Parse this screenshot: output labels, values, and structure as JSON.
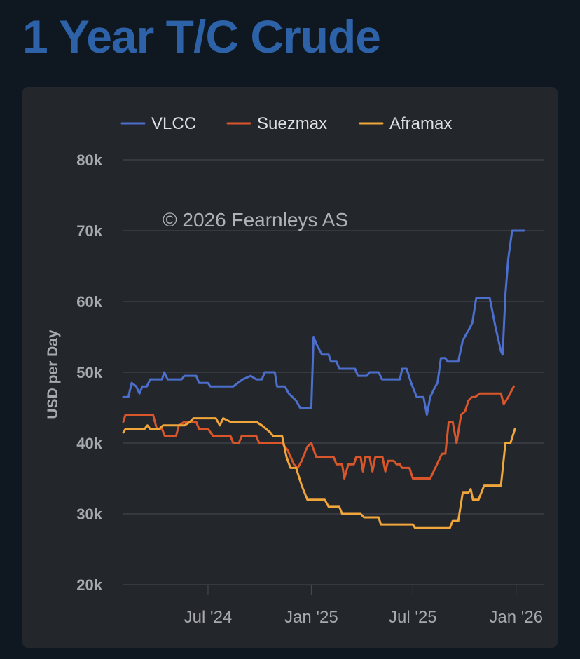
{
  "page": {
    "title": "1 Year T/C Crude"
  },
  "chart_data": {
    "type": "line",
    "ylabel": "USD per Day",
    "credit": "© 2026 Fearnleys AS",
    "ylim": [
      20000,
      80000
    ],
    "yticks": [
      20000,
      30000,
      40000,
      50000,
      60000,
      70000,
      80000
    ],
    "ytick_labels": [
      "20k",
      "30k",
      "40k",
      "50k",
      "60k",
      "70k",
      "80k"
    ],
    "xlim": [
      "2024-02-01",
      "2026-02-19"
    ],
    "xticks": [
      "2024-07-01",
      "2025-01-01",
      "2025-07-01",
      "2026-01-01"
    ],
    "xtick_labels": [
      "Jul '24",
      "Jan '25",
      "Jul '25",
      "Jan '26"
    ],
    "grid": true,
    "legend": "top",
    "series": [
      {
        "name": "VLCC",
        "color": "#4c6fce",
        "points": [
          [
            "2024-02-01",
            46500
          ],
          [
            "2024-02-10",
            46500
          ],
          [
            "2024-02-16",
            48500
          ],
          [
            "2024-02-24",
            48000
          ],
          [
            "2024-03-01",
            47000
          ],
          [
            "2024-03-06",
            48000
          ],
          [
            "2024-03-14",
            48000
          ],
          [
            "2024-03-20",
            49000
          ],
          [
            "2024-04-10",
            49000
          ],
          [
            "2024-04-14",
            50000
          ],
          [
            "2024-04-20",
            49000
          ],
          [
            "2024-05-15",
            49000
          ],
          [
            "2024-05-20",
            49500
          ],
          [
            "2024-06-10",
            49500
          ],
          [
            "2024-06-15",
            48500
          ],
          [
            "2024-07-01",
            48500
          ],
          [
            "2024-07-05",
            48000
          ],
          [
            "2024-08-15",
            48000
          ],
          [
            "2024-09-01",
            49000
          ],
          [
            "2024-09-15",
            49500
          ],
          [
            "2024-09-25",
            49000
          ],
          [
            "2024-10-05",
            49000
          ],
          [
            "2024-10-10",
            50000
          ],
          [
            "2024-10-28",
            50000
          ],
          [
            "2024-11-01",
            48000
          ],
          [
            "2024-11-15",
            48000
          ],
          [
            "2024-11-22",
            47000
          ],
          [
            "2024-12-05",
            46000
          ],
          [
            "2024-12-12",
            45000
          ],
          [
            "2025-01-01",
            45000
          ],
          [
            "2025-01-05",
            55000
          ],
          [
            "2025-01-10",
            54000
          ],
          [
            "2025-01-20",
            52500
          ],
          [
            "2025-02-01",
            52500
          ],
          [
            "2025-02-05",
            51500
          ],
          [
            "2025-02-15",
            51500
          ],
          [
            "2025-02-20",
            50500
          ],
          [
            "2025-03-20",
            50500
          ],
          [
            "2025-03-25",
            49500
          ],
          [
            "2025-04-10",
            49500
          ],
          [
            "2025-04-15",
            50000
          ],
          [
            "2025-05-01",
            50000
          ],
          [
            "2025-05-07",
            49000
          ],
          [
            "2025-06-08",
            49000
          ],
          [
            "2025-06-12",
            50500
          ],
          [
            "2025-06-20",
            50500
          ],
          [
            "2025-06-28",
            48500
          ],
          [
            "2025-07-08",
            46500
          ],
          [
            "2025-07-20",
            46500
          ],
          [
            "2025-07-26",
            44000
          ],
          [
            "2025-08-01",
            46500
          ],
          [
            "2025-08-10",
            48000
          ],
          [
            "2025-08-14",
            48500
          ],
          [
            "2025-08-20",
            52000
          ],
          [
            "2025-08-28",
            52000
          ],
          [
            "2025-09-01",
            51500
          ],
          [
            "2025-09-20",
            51500
          ],
          [
            "2025-09-28",
            54500
          ],
          [
            "2025-10-05",
            55500
          ],
          [
            "2025-10-12",
            56500
          ],
          [
            "2025-10-15",
            57000
          ],
          [
            "2025-10-22",
            60500
          ],
          [
            "2025-11-15",
            60500
          ],
          [
            "2025-11-25",
            56500
          ],
          [
            "2025-12-05",
            53000
          ],
          [
            "2025-12-08",
            52500
          ],
          [
            "2025-12-13",
            61000
          ],
          [
            "2025-12-18",
            66000
          ],
          [
            "2025-12-25",
            70000
          ],
          [
            "2026-01-15",
            70000
          ]
        ]
      },
      {
        "name": "Suezmax",
        "color": "#d9562b",
        "points": [
          [
            "2024-02-01",
            43000
          ],
          [
            "2024-02-05",
            44000
          ],
          [
            "2024-03-25",
            44000
          ],
          [
            "2024-03-30",
            42500
          ],
          [
            "2024-04-01",
            42000
          ],
          [
            "2024-04-10",
            42000
          ],
          [
            "2024-04-15",
            41000
          ],
          [
            "2024-05-05",
            41000
          ],
          [
            "2024-05-10",
            42500
          ],
          [
            "2024-05-20",
            43000
          ],
          [
            "2024-06-10",
            43000
          ],
          [
            "2024-06-15",
            42000
          ],
          [
            "2024-07-01",
            42000
          ],
          [
            "2024-07-10",
            41000
          ],
          [
            "2024-08-10",
            41000
          ],
          [
            "2024-08-15",
            40000
          ],
          [
            "2024-08-25",
            40000
          ],
          [
            "2024-08-30",
            41000
          ],
          [
            "2024-09-25",
            41000
          ],
          [
            "2024-09-30",
            40000
          ],
          [
            "2024-11-10",
            40000
          ],
          [
            "2024-11-20",
            39000
          ],
          [
            "2024-12-01",
            37000
          ],
          [
            "2024-12-08",
            36500
          ],
          [
            "2024-12-15",
            37500
          ],
          [
            "2024-12-25",
            39500
          ],
          [
            "2025-01-01",
            40000
          ],
          [
            "2025-01-10",
            38000
          ],
          [
            "2025-02-10",
            38000
          ],
          [
            "2025-02-15",
            37000
          ],
          [
            "2025-02-25",
            37000
          ],
          [
            "2025-03-01",
            35000
          ],
          [
            "2025-03-08",
            37000
          ],
          [
            "2025-03-18",
            37000
          ],
          [
            "2025-03-22",
            38000
          ],
          [
            "2025-03-30",
            38000
          ],
          [
            "2025-04-03",
            36000
          ],
          [
            "2025-04-07",
            38000
          ],
          [
            "2025-04-15",
            38000
          ],
          [
            "2025-04-20",
            36000
          ],
          [
            "2025-04-25",
            38000
          ],
          [
            "2025-05-08",
            38000
          ],
          [
            "2025-05-13",
            36000
          ],
          [
            "2025-05-18",
            37500
          ],
          [
            "2025-05-28",
            37500
          ],
          [
            "2025-06-02",
            37000
          ],
          [
            "2025-06-08",
            37000
          ],
          [
            "2025-06-12",
            36500
          ],
          [
            "2025-06-25",
            36500
          ],
          [
            "2025-07-01",
            35000
          ],
          [
            "2025-08-01",
            35000
          ],
          [
            "2025-08-10",
            36500
          ],
          [
            "2025-08-22",
            38500
          ],
          [
            "2025-08-28",
            38500
          ],
          [
            "2025-09-03",
            43000
          ],
          [
            "2025-09-10",
            43000
          ],
          [
            "2025-09-17",
            40000
          ],
          [
            "2025-09-25",
            44000
          ],
          [
            "2025-10-02",
            44500
          ],
          [
            "2025-10-08",
            46000
          ],
          [
            "2025-10-14",
            46500
          ],
          [
            "2025-10-20",
            46500
          ],
          [
            "2025-10-28",
            47000
          ],
          [
            "2025-12-05",
            47000
          ],
          [
            "2025-12-10",
            45500
          ],
          [
            "2025-12-18",
            46500
          ],
          [
            "2025-12-28",
            48000
          ]
        ]
      },
      {
        "name": "Aframax",
        "color": "#f0a63a",
        "points": [
          [
            "2024-02-01",
            41500
          ],
          [
            "2024-02-05",
            42000
          ],
          [
            "2024-03-10",
            42000
          ],
          [
            "2024-03-15",
            42500
          ],
          [
            "2024-03-20",
            42000
          ],
          [
            "2024-04-05",
            42000
          ],
          [
            "2024-04-12",
            42500
          ],
          [
            "2024-05-20",
            42500
          ],
          [
            "2024-05-30",
            43000
          ],
          [
            "2024-06-05",
            43500
          ],
          [
            "2024-07-15",
            43500
          ],
          [
            "2024-07-22",
            42500
          ],
          [
            "2024-07-28",
            43500
          ],
          [
            "2024-08-10",
            43000
          ],
          [
            "2024-09-25",
            43000
          ],
          [
            "2024-10-05",
            42500
          ],
          [
            "2024-10-20",
            41500
          ],
          [
            "2024-10-25",
            41000
          ],
          [
            "2024-11-10",
            41000
          ],
          [
            "2024-11-18",
            38000
          ],
          [
            "2024-11-25",
            36500
          ],
          [
            "2024-12-05",
            36500
          ],
          [
            "2024-12-15",
            34000
          ],
          [
            "2024-12-25",
            32000
          ],
          [
            "2025-01-25",
            32000
          ],
          [
            "2025-02-01",
            31000
          ],
          [
            "2025-02-20",
            31000
          ],
          [
            "2025-02-25",
            30000
          ],
          [
            "2025-03-30",
            30000
          ],
          [
            "2025-04-05",
            29500
          ],
          [
            "2025-05-01",
            29500
          ],
          [
            "2025-05-05",
            28500
          ],
          [
            "2025-07-01",
            28500
          ],
          [
            "2025-07-05",
            28000
          ],
          [
            "2025-09-05",
            28000
          ],
          [
            "2025-09-10",
            29000
          ],
          [
            "2025-09-20",
            29000
          ],
          [
            "2025-09-28",
            33000
          ],
          [
            "2025-10-08",
            33000
          ],
          [
            "2025-10-12",
            33500
          ],
          [
            "2025-10-16",
            32000
          ],
          [
            "2025-10-26",
            32000
          ],
          [
            "2025-11-05",
            34000
          ],
          [
            "2025-12-05",
            34000
          ],
          [
            "2025-12-13",
            40000
          ],
          [
            "2025-12-22",
            40000
          ],
          [
            "2025-12-30",
            42000
          ]
        ]
      }
    ]
  }
}
